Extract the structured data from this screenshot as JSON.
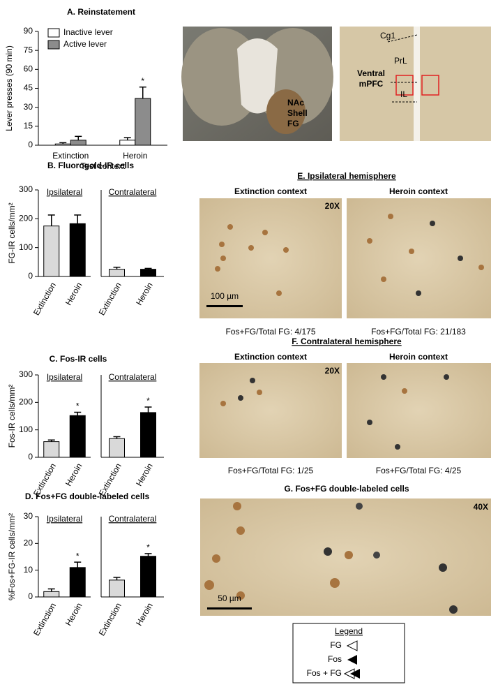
{
  "chart_data": [
    {
      "type": "bar",
      "title": "A. Reinstatement",
      "categories": [
        "Extinction",
        "Heroin"
      ],
      "xlabel": "Test context",
      "ylabel": "Lever presses (90 min)",
      "ylim": [
        0,
        90
      ],
      "yticks": [
        0,
        15,
        30,
        45,
        60,
        75,
        90
      ],
      "legend": "upper left",
      "series": [
        {
          "name": "Inactive lever",
          "color": "#ffffff",
          "values": [
            1,
            4
          ],
          "errors": [
            1,
            2
          ]
        },
        {
          "name": "Active lever",
          "color": "#8c8c8c",
          "values": [
            4,
            37
          ],
          "errors": [
            3,
            9
          ]
        }
      ],
      "annotations": [
        {
          "text": "*",
          "category": "Heroin",
          "series": "Active lever"
        }
      ]
    },
    {
      "type": "bar",
      "title": "B. Fluorogold-IR cells",
      "subtitle": "Ipsilateral",
      "ylabel": "FG-IR cells/mm²",
      "categories": [
        "Extinction",
        "Heroin"
      ],
      "values": [
        175,
        183
      ],
      "errors": [
        38,
        30
      ],
      "colors": [
        "#d9d9d9",
        "#000000"
      ],
      "ylim": [
        0,
        300
      ],
      "yticks": [
        0,
        100,
        200,
        300
      ]
    },
    {
      "type": "bar",
      "subtitle": "Contralateral",
      "categories": [
        "Extinction",
        "Heroin"
      ],
      "values": [
        25,
        25
      ],
      "errors": [
        7,
        3
      ],
      "colors": [
        "#d9d9d9",
        "#000000"
      ],
      "ylim": [
        0,
        300
      ]
    },
    {
      "type": "bar",
      "title": "C. Fos-IR cells",
      "subtitle": "Ipsilateral",
      "ylabel": "Fos-IR cells/mm²",
      "categories": [
        "Extinction",
        "Heroin"
      ],
      "values": [
        57,
        152
      ],
      "errors": [
        6,
        12
      ],
      "colors": [
        "#d9d9d9",
        "#000000"
      ],
      "ylim": [
        0,
        300
      ],
      "yticks": [
        0,
        100,
        200,
        300
      ],
      "annotations": [
        {
          "text": "*",
          "category": "Heroin"
        }
      ]
    },
    {
      "type": "bar",
      "subtitle": "Contralateral",
      "categories": [
        "Extinction",
        "Heroin"
      ],
      "values": [
        68,
        163
      ],
      "errors": [
        7,
        20
      ],
      "colors": [
        "#d9d9d9",
        "#000000"
      ],
      "ylim": [
        0,
        300
      ],
      "annotations": [
        {
          "text": "*",
          "category": "Heroin"
        }
      ]
    },
    {
      "type": "bar",
      "title": "D. Fos+FG double-labeled cells",
      "subtitle": "Ipsilateral",
      "ylabel": "%Fos+FG-IR cells/mm²",
      "categories": [
        "Extinction",
        "Heroin"
      ],
      "values": [
        2,
        11
      ],
      "errors": [
        1,
        2
      ],
      "colors": [
        "#d9d9d9",
        "#000000"
      ],
      "ylim": [
        0,
        30
      ],
      "yticks": [
        0,
        10,
        20,
        30
      ],
      "annotations": [
        {
          "text": "*",
          "category": "Heroin"
        }
      ]
    },
    {
      "type": "bar",
      "subtitle": "Contralateral",
      "categories": [
        "Extinction",
        "Heroin"
      ],
      "values": [
        6.3,
        15.2
      ],
      "errors": [
        1,
        1
      ],
      "colors": [
        "#d9d9d9",
        "#000000"
      ],
      "ylim": [
        0,
        30
      ],
      "annotations": [
        {
          "text": "*",
          "category": "Heroin"
        }
      ]
    }
  ],
  "figure": {
    "nac_label": [
      "NAc",
      "Shell",
      "FG"
    ],
    "mpfc_labels": {
      "cg1": "Cg1",
      "prl": "PrL",
      "region": [
        "Ventral",
        "mPFC"
      ],
      "il": "IL"
    },
    "panel_e": {
      "title": "E. Ipsilateral hemisphere",
      "magnification": "20X",
      "scale_bar": "100 µm",
      "left": {
        "heading": "Extinction context",
        "caption": "Fos+FG/Total FG: 4/175"
      },
      "right": {
        "heading": "Heroin context",
        "caption": "Fos+FG/Total FG: 21/183"
      }
    },
    "panel_f": {
      "title": "F. Contralateral hemisphere",
      "magnification": "20X",
      "left": {
        "heading": "Extinction context",
        "caption": "Fos+FG/Total FG: 1/25"
      },
      "right": {
        "heading": "Heroin context",
        "caption": "Fos+FG/Total FG: 4/25"
      }
    },
    "panel_g": {
      "title": "G. Fos+FG double-labeled cells",
      "magnification": "40X",
      "scale_bar": "50 µm"
    },
    "legend": {
      "title": "Legend",
      "items": [
        "FG",
        "Fos",
        "Fos + FG"
      ]
    }
  }
}
